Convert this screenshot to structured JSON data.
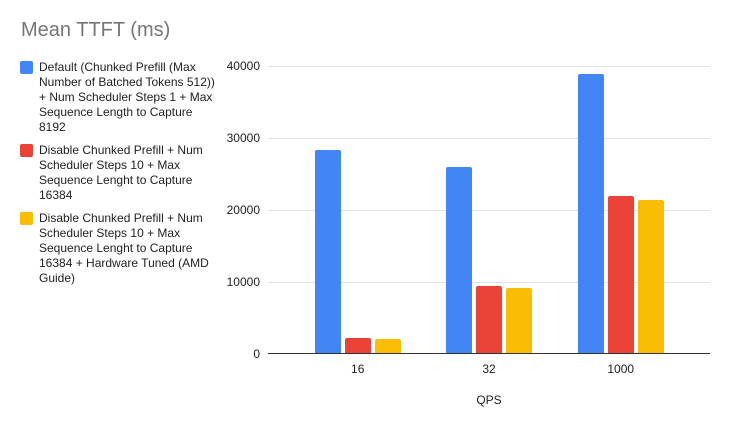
{
  "title": "Mean TTFT (ms)",
  "colors": {
    "series_blue": "#4285F4",
    "series_red": "#EA4335",
    "series_yellow": "#FBBC04",
    "title_text": "#757575",
    "body_text": "#212121",
    "gridline": "#e2e2e2",
    "axis_line": "#333333",
    "background": "#ffffff"
  },
  "chart_data": {
    "type": "bar",
    "title": "Mean TTFT (ms)",
    "xlabel": "QPS",
    "ylabel": "",
    "categories": [
      "16",
      "32",
      "1000"
    ],
    "series": [
      {
        "name": "Default (Chunked Prefill (Max Number of Batched Tokens 512)) + Num Scheduler Steps 1 + Max Sequence Length to Capture 8192",
        "color": "#4285F4",
        "values": [
          28300,
          26000,
          38900
        ]
      },
      {
        "name": "Disable Chunked Prefill + Num Scheduler Steps 10 + Max Sequence Lenght to Capture 16384",
        "color": "#EA4335",
        "values": [
          2200,
          9400,
          21900
        ]
      },
      {
        "name": "Disable Chunked Prefill + Num Scheduler Steps 10 + Max Sequence Lenght to Capture 16384 + Hardware Tuned (AMD Guide)",
        "color": "#FBBC04",
        "values": [
          2100,
          9200,
          21400
        ]
      }
    ],
    "ylim": [
      0,
      40000
    ],
    "yticks": [
      0,
      10000,
      20000,
      30000,
      40000
    ],
    "ytick_labels": [
      "0",
      "10000",
      "20000",
      "30000",
      "40000"
    ],
    "grid": true,
    "legend_position": "left"
  }
}
